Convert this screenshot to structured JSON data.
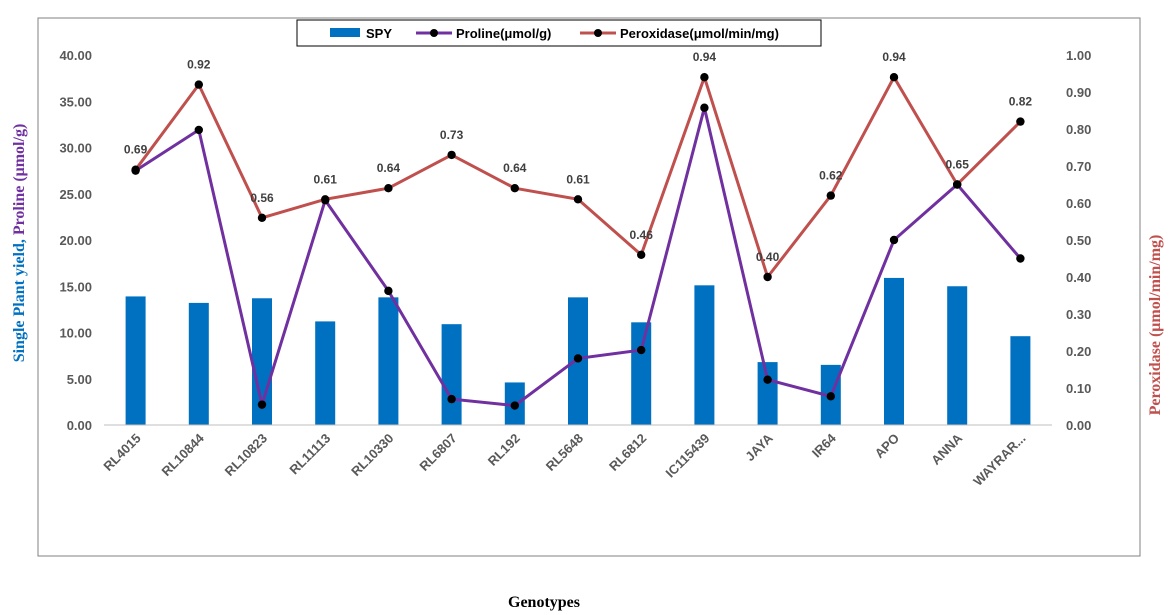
{
  "chart_data": {
    "type": "bar",
    "categories": [
      "RL4015",
      "RL10844",
      "RL10823",
      "RL11113",
      "RL10330",
      "RL6807",
      "RL192",
      "RL5648",
      "RL6812",
      "IC115439",
      "JAYA",
      "IR64",
      "APO",
      "ANNA",
      "WAYRAR..."
    ],
    "series": [
      {
        "name": "SPY",
        "type": "bar",
        "axis": "left",
        "color": "#0070C0",
        "values": [
          13.9,
          13.2,
          13.7,
          11.2,
          13.8,
          10.9,
          4.6,
          13.8,
          11.1,
          15.1,
          6.8,
          6.5,
          15.9,
          15.0,
          9.6
        ]
      },
      {
        "name": "Proline(μmol/g)",
        "type": "line",
        "axis": "left",
        "color": "#7030A0",
        "values": [
          27.5,
          31.9,
          2.2,
          24.3,
          14.5,
          2.8,
          2.1,
          7.2,
          8.1,
          34.3,
          4.9,
          3.1,
          20.0,
          26.0,
          18.0
        ]
      },
      {
        "name": "Peroxidase(μmol/min/mg)",
        "type": "line",
        "axis": "right",
        "color": "#C0504D",
        "values": [
          0.69,
          0.92,
          0.56,
          0.61,
          0.64,
          0.73,
          0.64,
          0.61,
          0.46,
          0.94,
          0.4,
          0.62,
          0.94,
          0.65,
          0.82
        ],
        "labels": [
          "0.69",
          "0.92",
          "0.56",
          "0.61",
          "0.64",
          "0.73",
          "0.64",
          "0.61",
          "0.46",
          "0.94",
          "0.40",
          "0.62",
          "0.94",
          "0.65",
          "0.82"
        ]
      }
    ],
    "ylim_left": [
      0,
      40
    ],
    "ylim_right": [
      0,
      1
    ],
    "yticks_left": [
      "0.00",
      "5.00",
      "10.00",
      "15.00",
      "20.00",
      "25.00",
      "30.00",
      "35.00",
      "40.00"
    ],
    "yticks_right": [
      "0.00",
      "0.10",
      "0.20",
      "0.30",
      "0.40",
      "0.50",
      "0.60",
      "0.70",
      "0.80",
      "0.90",
      "1.00"
    ],
    "ylabel_left_parts": [
      {
        "text": "Single ",
        "color": "#0070C0"
      },
      {
        "text": "Plant yield, ",
        "color": "#0070C0"
      },
      {
        "text": "Proline ",
        "color": "#7030A0"
      },
      {
        "text": "(μmol/g)",
        "color": "#7030A0"
      }
    ],
    "ylabel_right": "Peroxidase (μmol/min/mg)",
    "ylabel_right_color": "#C0504D",
    "xlabel": "Genotypes",
    "legend_position": "top",
    "grid": false
  }
}
